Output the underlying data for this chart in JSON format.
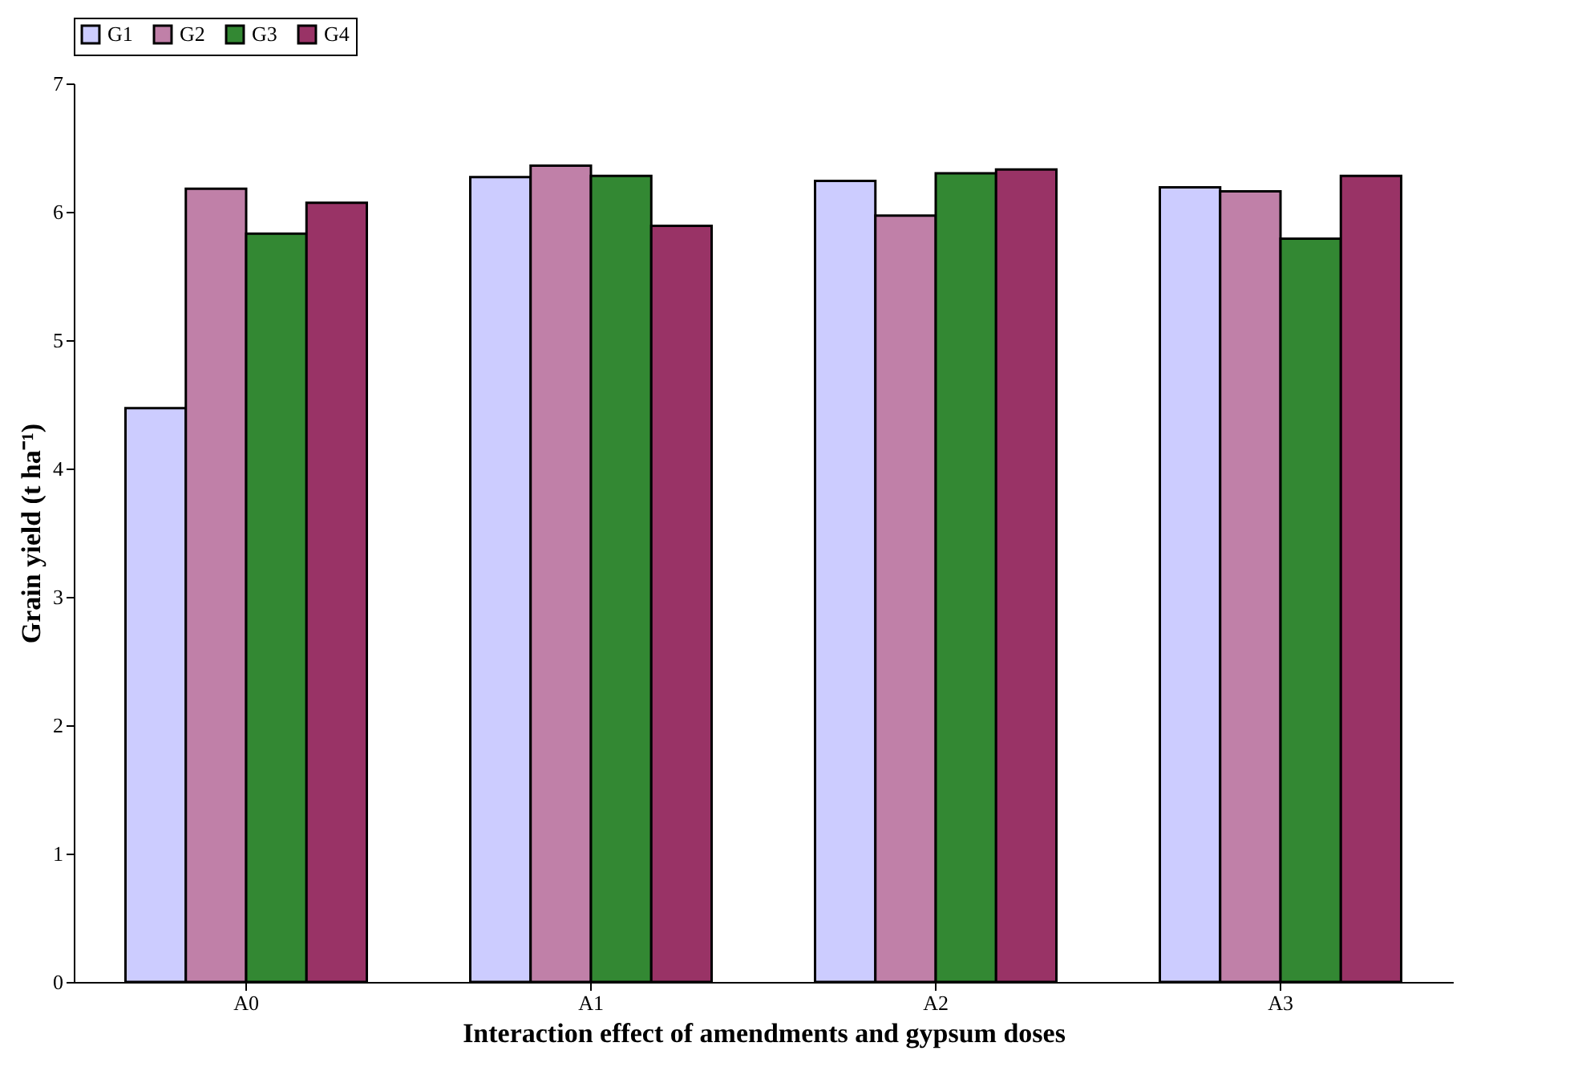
{
  "chart_data": {
    "type": "bar",
    "xlabel": "Interaction effect of amendments and gypsum doses",
    "ylabel": "Grain yield (t ha⁻¹)",
    "categories": [
      "A0",
      "A1",
      "A2",
      "A3"
    ],
    "series": [
      {
        "name": "G1",
        "color": "#ccccff",
        "values": [
          4.47,
          6.27,
          6.24,
          6.19
        ]
      },
      {
        "name": "G2",
        "color": "#c080a8",
        "values": [
          6.18,
          6.36,
          5.97,
          6.16
        ]
      },
      {
        "name": "G3",
        "color": "#338833",
        "values": [
          5.83,
          6.28,
          6.3,
          5.79
        ]
      },
      {
        "name": "G4",
        "color": "#993366",
        "values": [
          6.07,
          5.89,
          6.33,
          6.28
        ]
      }
    ],
    "ylim": [
      0,
      7
    ],
    "yticks": [
      0,
      1,
      2,
      3,
      4,
      5,
      6,
      7
    ],
    "grid": false,
    "legend": "top"
  }
}
